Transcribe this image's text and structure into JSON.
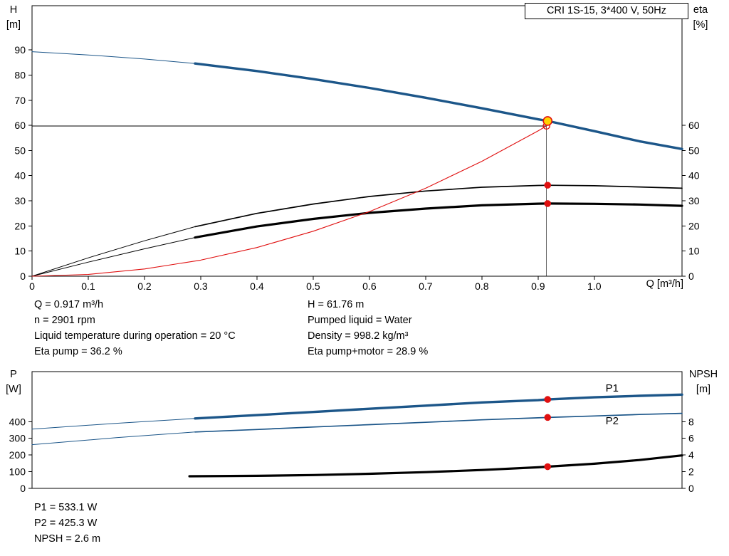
{
  "title_box": "CRI 1S-15, 3*400 V, 50Hz",
  "axis_labels": {
    "h": "H",
    "h_unit": "[m]",
    "eta": "eta",
    "eta_unit": "[%]",
    "q": "Q [m³/h]",
    "p": "P",
    "p_unit": "[W]",
    "npsh": "NPSH",
    "npsh_unit": "[m]"
  },
  "info_top": {
    "left": [
      "Q = 0.917 m³/h",
      "n = 2901 rpm",
      "Liquid temperature during operation = 20 °C",
      "Eta pump = 36.2 %"
    ],
    "right": [
      "H = 61.76 m",
      "Pumped liquid = Water",
      "Density = 998.2 kg/m³",
      "Eta pump+motor = 28.9 %"
    ]
  },
  "info_bottom": [
    "P1 = 533.1 W",
    "P2 = 425.3 W",
    "NPSH = 2.6 m"
  ],
  "colors": {
    "curve_blue": "#1c5689",
    "marker_red": "#e01010",
    "duty_yellow": "#ffd300",
    "guide_gray": "#666666",
    "black": "#000000"
  },
  "chart_data": [
    {
      "name": "qh-eta-chart",
      "type": "line",
      "title": "CRI 1S-15, 3*400 V, 50Hz",
      "xlabel": "Q [m³/h]",
      "ylabel_left": "H [m]",
      "ylabel_right": "eta [%]",
      "plot": {
        "x0": 45,
        "x1": 958,
        "y0": 8,
        "y1": 388
      },
      "x_range": [
        0,
        1.156
      ],
      "y_left_range": [
        0,
        107.6
      ],
      "y_right_range": [
        0,
        107.6
      ],
      "ticks": {
        "left": [
          {
            "v": 0,
            "l": "0"
          },
          {
            "v": 10,
            "l": "10"
          },
          {
            "v": 20,
            "l": "20"
          },
          {
            "v": 30,
            "l": "30"
          },
          {
            "v": 40,
            "l": "40"
          },
          {
            "v": 50,
            "l": "50"
          },
          {
            "v": 60,
            "l": "60"
          },
          {
            "v": 70,
            "l": "70"
          },
          {
            "v": 80,
            "l": "80"
          },
          {
            "v": 90,
            "l": "90"
          }
        ],
        "right": [
          {
            "v": 0,
            "l": "0"
          },
          {
            "v": 10,
            "l": "10"
          },
          {
            "v": 20,
            "l": "20"
          },
          {
            "v": 30,
            "l": "30"
          },
          {
            "v": 40,
            "l": "40"
          },
          {
            "v": 50,
            "l": "50"
          },
          {
            "v": 60,
            "l": "60"
          }
        ],
        "bottom": [
          {
            "v": 0,
            "l": "0"
          },
          {
            "v": 0.1,
            "l": "0.1"
          },
          {
            "v": 0.2,
            "l": "0.2"
          },
          {
            "v": 0.3,
            "l": "0.3"
          },
          {
            "v": 0.4,
            "l": "0.4"
          },
          {
            "v": 0.5,
            "l": "0.5"
          },
          {
            "v": 0.6,
            "l": "0.6"
          },
          {
            "v": 0.7,
            "l": "0.7"
          },
          {
            "v": 0.8,
            "l": "0.8"
          },
          {
            "v": 0.9,
            "l": "0.9"
          },
          {
            "v": 1.0,
            "l": "1.0"
          }
        ]
      },
      "guides": [
        {
          "name": "duty-hline",
          "x1": 0,
          "y1": 59.8,
          "x2": 0.915,
          "y2": 59.8,
          "axis": "left",
          "color": "#000000",
          "width": 1
        },
        {
          "name": "duty-vline",
          "x1": 0.915,
          "y1": 0,
          "x2": 0.915,
          "y2": 61.76,
          "axis": "left",
          "color": "#666666",
          "width": 1
        }
      ],
      "series": [
        {
          "name": "h-curve-extrapolation",
          "axis": "left",
          "color": "#1c5689",
          "width": 1,
          "points": [
            [
              0,
              89.3
            ],
            [
              0.1,
              88.0
            ],
            [
              0.2,
              86.4
            ],
            [
              0.29,
              84.6
            ]
          ]
        },
        {
          "name": "h-curve",
          "axis": "left",
          "color": "#1c5689",
          "width": 3.4,
          "points": [
            [
              0.29,
              84.6
            ],
            [
              0.4,
              81.6
            ],
            [
              0.5,
              78.4
            ],
            [
              0.6,
              74.9
            ],
            [
              0.7,
              71.0
            ],
            [
              0.8,
              66.8
            ],
            [
              0.9,
              62.4
            ],
            [
              0.917,
              61.76
            ],
            [
              1.0,
              57.7
            ],
            [
              1.08,
              53.7
            ],
            [
              1.156,
              50.6
            ]
          ]
        },
        {
          "name": "eta-pump-extrapolation",
          "axis": "right",
          "color": "#000000",
          "width": 1,
          "points": [
            [
              0,
              0
            ],
            [
              0.1,
              7.3
            ],
            [
              0.2,
              14.1
            ],
            [
              0.29,
              19.7
            ]
          ]
        },
        {
          "name": "eta-pump-curve",
          "axis": "right",
          "color": "#000000",
          "width": 1.7,
          "points": [
            [
              0.29,
              19.7
            ],
            [
              0.4,
              25.0
            ],
            [
              0.5,
              28.7
            ],
            [
              0.6,
              31.7
            ],
            [
              0.7,
              33.9
            ],
            [
              0.8,
              35.4
            ],
            [
              0.9,
              36.1
            ],
            [
              0.917,
              36.2
            ],
            [
              1.0,
              36.0
            ],
            [
              1.08,
              35.5
            ],
            [
              1.156,
              35.0
            ]
          ]
        },
        {
          "name": "eta-pump-motor-extrapolation",
          "axis": "right",
          "color": "#000000",
          "width": 1,
          "points": [
            [
              0,
              0
            ],
            [
              0.1,
              5.6
            ],
            [
              0.2,
              10.9
            ],
            [
              0.29,
              15.4
            ]
          ]
        },
        {
          "name": "eta-pump-motor-curve",
          "axis": "right",
          "color": "#000000",
          "width": 3.2,
          "points": [
            [
              0.29,
              15.4
            ],
            [
              0.4,
              19.8
            ],
            [
              0.5,
              22.8
            ],
            [
              0.6,
              25.2
            ],
            [
              0.7,
              26.9
            ],
            [
              0.8,
              28.2
            ],
            [
              0.9,
              28.85
            ],
            [
              0.917,
              28.9
            ],
            [
              1.0,
              28.8
            ],
            [
              1.08,
              28.5
            ],
            [
              1.156,
              28.0
            ]
          ]
        },
        {
          "name": "system-curve",
          "axis": "left",
          "color": "#e01010",
          "width": 1.1,
          "points": [
            [
              0,
              0
            ],
            [
              0.1,
              0.7
            ],
            [
              0.2,
              2.9
            ],
            [
              0.3,
              6.4
            ],
            [
              0.4,
              11.4
            ],
            [
              0.5,
              17.9
            ],
            [
              0.6,
              25.7
            ],
            [
              0.7,
              35.0
            ],
            [
              0.8,
              45.7
            ],
            [
              0.9,
              57.8
            ],
            [
              0.915,
              59.8
            ]
          ]
        }
      ],
      "markers": [
        {
          "name": "duty-point-requested",
          "q": 0.915,
          "v": 59.8,
          "axis": "left",
          "r": 4.6,
          "fill": "none",
          "stroke": "#e01010",
          "sw": 1.4
        },
        {
          "name": "duty-point-actual",
          "q": 0.917,
          "v": 61.76,
          "axis": "left",
          "r": 6,
          "fill": "#ffd300",
          "stroke": "#e01010",
          "sw": 1.6
        },
        {
          "name": "eta-pump-duty-point",
          "q": 0.917,
          "v": 36.2,
          "axis": "right",
          "r": 4.8,
          "fill": "#e01010",
          "stroke": "none",
          "sw": 0
        },
        {
          "name": "eta-pump-motor-duty-point",
          "q": 0.917,
          "v": 28.9,
          "axis": "right",
          "r": 4.8,
          "fill": "#e01010",
          "stroke": "none",
          "sw": 0
        }
      ],
      "labels": []
    },
    {
      "name": "power-npsh-chart",
      "type": "line",
      "title": "",
      "xlabel": "",
      "ylabel_left": "P [W]",
      "ylabel_right": "NPSH [m]",
      "plot": {
        "x0": 45,
        "x1": 958,
        "y0": 7,
        "y1": 171
      },
      "x_range": [
        0,
        1.156
      ],
      "y_left_range": [
        0,
        700
      ],
      "y_right_range": [
        0,
        14
      ],
      "ticks": {
        "left": [
          {
            "v": 0,
            "l": "0"
          },
          {
            "v": 100,
            "l": "100"
          },
          {
            "v": 200,
            "l": "200"
          },
          {
            "v": 300,
            "l": "300"
          },
          {
            "v": 400,
            "l": "400"
          }
        ],
        "right": [
          {
            "v": 0,
            "l": "0"
          },
          {
            "v": 2,
            "l": "2"
          },
          {
            "v": 4,
            "l": "4"
          },
          {
            "v": 6,
            "l": "6"
          },
          {
            "v": 8,
            "l": "8"
          }
        ],
        "bottom": []
      },
      "guides": [],
      "series": [
        {
          "name": "p1-extrapolation",
          "axis": "left",
          "color": "#1c5689",
          "width": 1,
          "points": [
            [
              0,
              355
            ],
            [
              0.15,
              390
            ],
            [
              0.29,
              419
            ]
          ]
        },
        {
          "name": "p1-curve",
          "axis": "left",
          "color": "#1c5689",
          "width": 3.4,
          "points": [
            [
              0.29,
              419
            ],
            [
              0.4,
              439
            ],
            [
              0.5,
              458
            ],
            [
              0.6,
              477
            ],
            [
              0.7,
              496
            ],
            [
              0.8,
              515
            ],
            [
              0.9,
              529
            ],
            [
              0.917,
              533.1
            ],
            [
              1.0,
              546
            ],
            [
              1.08,
              555
            ],
            [
              1.156,
              562
            ]
          ]
        },
        {
          "name": "p2-extrapolation",
          "axis": "left",
          "color": "#1c5689",
          "width": 1,
          "points": [
            [
              0,
              262
            ],
            [
              0.15,
              304
            ],
            [
              0.29,
              338
            ]
          ]
        },
        {
          "name": "p2-curve",
          "axis": "left",
          "color": "#1c5689",
          "width": 1.7,
          "points": [
            [
              0.29,
              338
            ],
            [
              0.4,
              353
            ],
            [
              0.5,
              368
            ],
            [
              0.6,
              382
            ],
            [
              0.7,
              396
            ],
            [
              0.8,
              411
            ],
            [
              0.9,
              423
            ],
            [
              0.917,
              425.3
            ],
            [
              1.0,
              434
            ],
            [
              1.08,
              443
            ],
            [
              1.156,
              450
            ]
          ]
        },
        {
          "name": "npsh-curve",
          "axis": "right",
          "color": "#000000",
          "width": 3.2,
          "points": [
            [
              0.28,
              1.45
            ],
            [
              0.4,
              1.5
            ],
            [
              0.5,
              1.6
            ],
            [
              0.6,
              1.75
            ],
            [
              0.7,
              1.95
            ],
            [
              0.8,
              2.2
            ],
            [
              0.9,
              2.53
            ],
            [
              0.917,
              2.6
            ],
            [
              1.0,
              2.95
            ],
            [
              1.08,
              3.4
            ],
            [
              1.156,
              3.95
            ]
          ]
        }
      ],
      "markers": [
        {
          "name": "p1-duty-point",
          "q": 0.917,
          "v": 533.1,
          "axis": "left",
          "r": 4.8,
          "fill": "#e01010",
          "stroke": "none",
          "sw": 0
        },
        {
          "name": "p2-duty-point",
          "q": 0.917,
          "v": 425.3,
          "axis": "left",
          "r": 4.8,
          "fill": "#e01010",
          "stroke": "none",
          "sw": 0
        },
        {
          "name": "npsh-duty-point",
          "q": 0.917,
          "v": 2.6,
          "axis": "right",
          "r": 4.8,
          "fill": "#e01010",
          "stroke": "none",
          "sw": 0
        }
      ],
      "labels": [
        {
          "name": "p1-curve-label",
          "text": "P1",
          "q": 1.02,
          "v": 580,
          "axis": "left",
          "color": "#1c5689",
          "size": "15"
        },
        {
          "name": "p2-curve-label",
          "text": "P2",
          "q": 1.02,
          "v": 385,
          "axis": "left",
          "color": "#1c5689",
          "size": "15"
        }
      ]
    }
  ]
}
